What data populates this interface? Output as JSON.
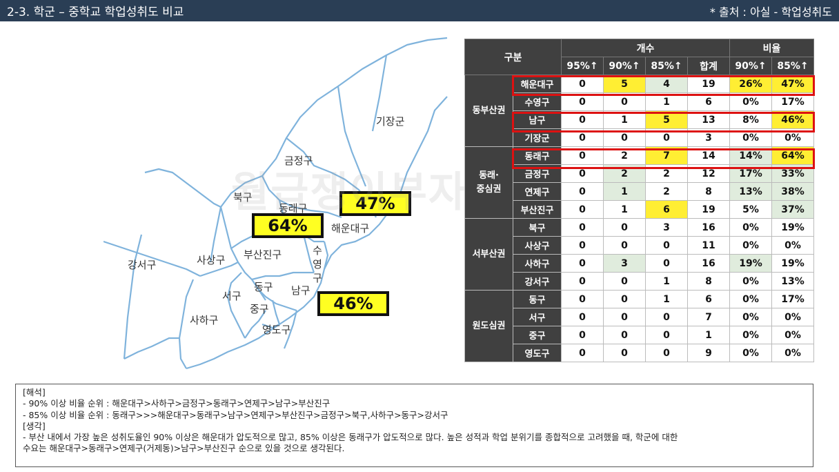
{
  "header": {
    "title": "2-3. 학군 – 중학교 학업성취도 비교",
    "source": "* 출처 : 아실 - 학업성취도"
  },
  "watermark": "월급쟁이부자들",
  "map": {
    "districts": [
      "기장군",
      "금정구",
      "북구",
      "동래구",
      "해운대구",
      "강서구",
      "사상구",
      "부산진구",
      "수영구",
      "서구",
      "동구",
      "남구",
      "중구",
      "사하구",
      "영도구"
    ],
    "callouts": [
      "47%",
      "64%",
      "46%"
    ],
    "colors": {
      "line": "#7fb3dc",
      "fill": "#ffffff",
      "box": "#ffff22"
    }
  },
  "table": {
    "headers": {
      "group": "구분",
      "count": "개수",
      "ratio": "비율"
    },
    "subheaders": [
      "95%↑",
      "90%↑",
      "85%↑",
      "합계",
      "90%↑",
      "85%↑"
    ],
    "groups": [
      {
        "name": "동부산권",
        "rows": [
          {
            "name": "해운대구",
            "vals": [
              "0",
              "5",
              "4",
              "19",
              "26%",
              "47%"
            ]
          },
          {
            "name": "수영구",
            "vals": [
              "0",
              "0",
              "1",
              "6",
              "0%",
              "17%"
            ]
          },
          {
            "name": "남구",
            "vals": [
              "0",
              "1",
              "5",
              "13",
              "8%",
              "46%"
            ]
          },
          {
            "name": "기장군",
            "vals": [
              "0",
              "0",
              "0",
              "3",
              "0%",
              "0%"
            ]
          }
        ]
      },
      {
        "name": "동래·\n중심권",
        "rows": [
          {
            "name": "동래구",
            "vals": [
              "0",
              "2",
              "7",
              "14",
              "14%",
              "64%"
            ]
          },
          {
            "name": "금정구",
            "vals": [
              "0",
              "2",
              "2",
              "12",
              "17%",
              "33%"
            ]
          },
          {
            "name": "연제구",
            "vals": [
              "0",
              "1",
              "2",
              "8",
              "13%",
              "38%"
            ]
          },
          {
            "name": "부산진구",
            "vals": [
              "0",
              "1",
              "6",
              "19",
              "5%",
              "37%"
            ]
          }
        ]
      },
      {
        "name": "서부산권",
        "rows": [
          {
            "name": "북구",
            "vals": [
              "0",
              "0",
              "3",
              "16",
              "0%",
              "19%"
            ]
          },
          {
            "name": "사상구",
            "vals": [
              "0",
              "0",
              "0",
              "11",
              "0%",
              "0%"
            ]
          },
          {
            "name": "사하구",
            "vals": [
              "0",
              "3",
              "0",
              "16",
              "19%",
              "19%"
            ]
          },
          {
            "name": "강서구",
            "vals": [
              "0",
              "0",
              "1",
              "8",
              "0%",
              "13%"
            ]
          }
        ]
      },
      {
        "name": "원도심권",
        "rows": [
          {
            "name": "동구",
            "vals": [
              "0",
              "0",
              "1",
              "6",
              "0%",
              "17%"
            ]
          },
          {
            "name": "서구",
            "vals": [
              "0",
              "0",
              "0",
              "7",
              "0%",
              "0%"
            ]
          },
          {
            "name": "중구",
            "vals": [
              "0",
              "0",
              "0",
              "1",
              "0%",
              "0%"
            ]
          },
          {
            "name": "영도구",
            "vals": [
              "0",
              "0",
              "0",
              "9",
              "0%",
              "0%"
            ]
          }
        ]
      }
    ],
    "cell_shading": [
      [
        "w",
        "y",
        "g",
        "w",
        "y",
        "y"
      ],
      [
        "w",
        "w",
        "w",
        "w",
        "w",
        "w"
      ],
      [
        "w",
        "w",
        "y",
        "w",
        "w",
        "y"
      ],
      [
        "w",
        "w",
        "w",
        "w",
        "w",
        "w"
      ],
      [
        "w",
        "w",
        "y",
        "w",
        "g",
        "y"
      ],
      [
        "w",
        "g",
        "w",
        "w",
        "g",
        "g"
      ],
      [
        "w",
        "g",
        "w",
        "w",
        "g",
        "g"
      ],
      [
        "w",
        "w",
        "y",
        "w",
        "w",
        "g"
      ],
      [
        "w",
        "w",
        "w",
        "w",
        "w",
        "w"
      ],
      [
        "w",
        "w",
        "w",
        "w",
        "w",
        "w"
      ],
      [
        "w",
        "g",
        "w",
        "w",
        "g",
        "w"
      ],
      [
        "w",
        "w",
        "w",
        "w",
        "w",
        "w"
      ],
      [
        "w",
        "w",
        "w",
        "w",
        "w",
        "w"
      ],
      [
        "w",
        "w",
        "w",
        "w",
        "w",
        "w"
      ],
      [
        "w",
        "w",
        "w",
        "w",
        "w",
        "w"
      ],
      [
        "w",
        "w",
        "w",
        "w",
        "w",
        "w"
      ]
    ],
    "highlighted_rows": [
      "해운대구",
      "남구",
      "동래구"
    ]
  },
  "notes": {
    "interpretation_heading": "[해석]",
    "line1": "-    90% 이상 비율 순위 : 해운대구>사하구>금정구>동래구>연제구>남구>부산진구",
    "line2": "-    85% 이상 비율 순위 : 동래구>>>해운대구>동래구>남구>연제구>부산진구>금정구>북구,사하구>동구>강서구",
    "thought_heading": "[생각]",
    "line3": "- 부산 내에서 가장 높은 성취도율인 90% 이상은 해운대가 압도적으로 많고, 85% 이상은 동래구가 압도적으로 많다. 높은 성적과 학업 분위기를 종합적으로 고려했을 때, 학군에 대한",
    "line4": "수요는 해운대구>동래구>연제구(거제동)>남구>부산진구 순으로 있을 것으로 생각된다."
  }
}
